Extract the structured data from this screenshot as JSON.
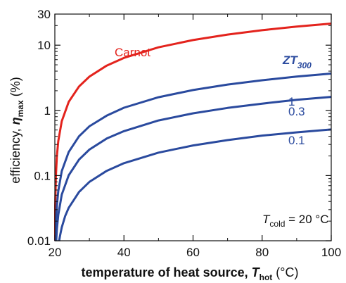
{
  "chart_data": {
    "type": "line",
    "title": "",
    "xlabel": {
      "prefix": "temperature of heat source, ",
      "symbol": "T",
      "subscript": "hot",
      "unit": " (°C)"
    },
    "ylabel": {
      "prefix": "efficiency, ",
      "symbol": "η",
      "subscript": "max",
      "unit": " (%)"
    },
    "xlim": [
      20,
      100
    ],
    "ylim": [
      0.01,
      30
    ],
    "yscale": "log",
    "grid": false,
    "x_ticks": [
      20,
      40,
      60,
      80,
      100
    ],
    "x_tick_labels": [
      "20",
      "40",
      "60",
      "80",
      "100"
    ],
    "y_ticks": [
      0.01,
      0.1,
      1,
      10,
      30
    ],
    "y_tick_labels": [
      "0.01",
      "0.1",
      "1",
      "10",
      "30"
    ],
    "series": [
      {
        "name": "Carnot",
        "color": "#e3231d",
        "x": [
          20.1,
          20.3,
          20.6,
          21,
          22,
          24,
          27,
          30,
          35,
          40,
          50,
          60,
          70,
          80,
          90,
          100
        ],
        "y": [
          0.034,
          0.1,
          0.2,
          0.34,
          0.68,
          1.35,
          2.33,
          3.29,
          4.86,
          6.39,
          9.28,
          11.99,
          14.56,
          16.98,
          19.28,
          21.45
        ]
      },
      {
        "name": "1",
        "color": "#2a4a9e",
        "x": [
          20.15,
          20.3,
          20.6,
          21,
          22,
          24,
          27,
          30,
          35,
          40,
          50,
          60,
          70,
          80,
          90,
          100
        ],
        "y": [
          0.0088,
          0.0175,
          0.035,
          0.058,
          0.117,
          0.23,
          0.4,
          0.57,
          0.83,
          1.1,
          1.59,
          2.05,
          2.49,
          2.9,
          3.3,
          3.67
        ]
      },
      {
        "name": "0.3",
        "color": "#2a4a9e",
        "x": [
          20.4,
          20.6,
          21,
          22,
          24,
          27,
          30,
          35,
          40,
          50,
          60,
          70,
          80,
          90,
          100
        ],
        "y": [
          0.0102,
          0.0152,
          0.025,
          0.051,
          0.101,
          0.176,
          0.25,
          0.37,
          0.48,
          0.7,
          0.9,
          1.09,
          1.27,
          1.45,
          1.61
        ]
      },
      {
        "name": "0.1",
        "color": "#2a4a9e",
        "x": [
          21.25,
          21.5,
          22,
          23,
          24,
          27,
          30,
          35,
          40,
          50,
          60,
          70,
          80,
          90,
          100
        ],
        "y": [
          0.01,
          0.012,
          0.016,
          0.024,
          0.032,
          0.056,
          0.08,
          0.118,
          0.155,
          0.225,
          0.29,
          0.35,
          0.41,
          0.46,
          0.51
        ]
      }
    ],
    "legend_title": {
      "main": "ZT",
      "subscript": "300"
    },
    "annotation": {
      "symbol": "T",
      "subscript": "cold",
      "text": " = 20 °C"
    }
  }
}
